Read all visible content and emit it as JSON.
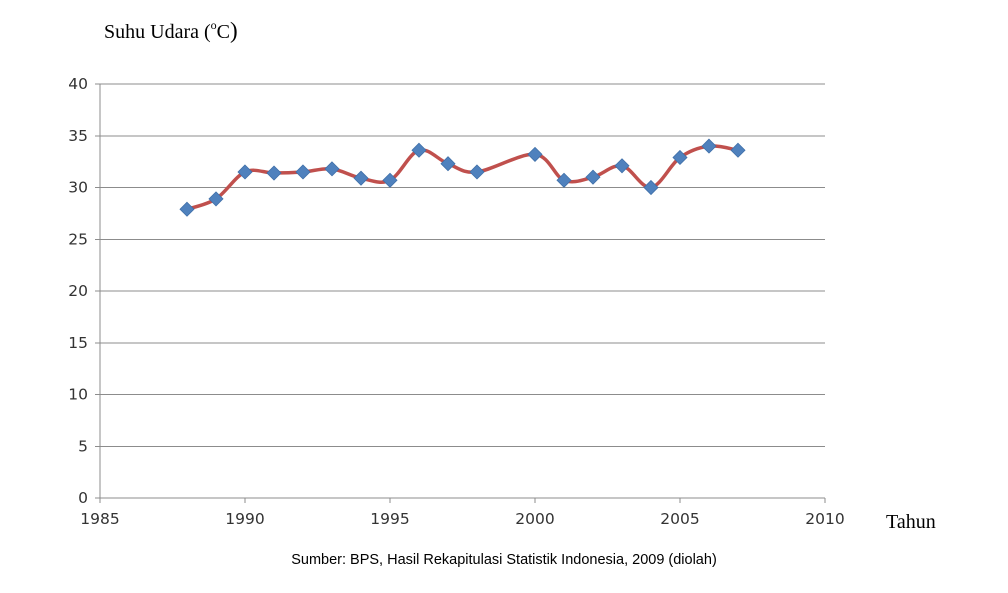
{
  "chart_data": {
    "type": "line",
    "title": "",
    "ylabel": {
      "prefix": "Suhu Udara (",
      "superscript": "o",
      "unit": "C",
      "close": ")"
    },
    "xlabel": "Tahun",
    "source_note": "Sumber: BPS, Hasil Rekapitulasi Statistik Indonesia, 2009 (diolah)",
    "xlim": [
      1985,
      2010
    ],
    "ylim": [
      0,
      40
    ],
    "x_ticks": [
      1985,
      1990,
      1995,
      2000,
      2005,
      2010
    ],
    "y_ticks": [
      0,
      5,
      10,
      15,
      20,
      25,
      30,
      35,
      40
    ],
    "grid": "horizontal",
    "x": [
      1988,
      1989,
      1990,
      1991,
      1992,
      1993,
      1994,
      1995,
      1996,
      1997,
      1998,
      2000,
      2001,
      2002,
      2003,
      2004,
      2005,
      2006,
      2007
    ],
    "series": [
      {
        "values": [
          27.9,
          28.9,
          31.5,
          31.4,
          31.5,
          31.8,
          30.9,
          30.7,
          33.6,
          32.3,
          31.5,
          33.2,
          30.7,
          31.0,
          32.1,
          30.0,
          32.9,
          34.0,
          33.6
        ],
        "marker_color": "#4F81BD",
        "line_color": "#C0504D"
      }
    ]
  }
}
